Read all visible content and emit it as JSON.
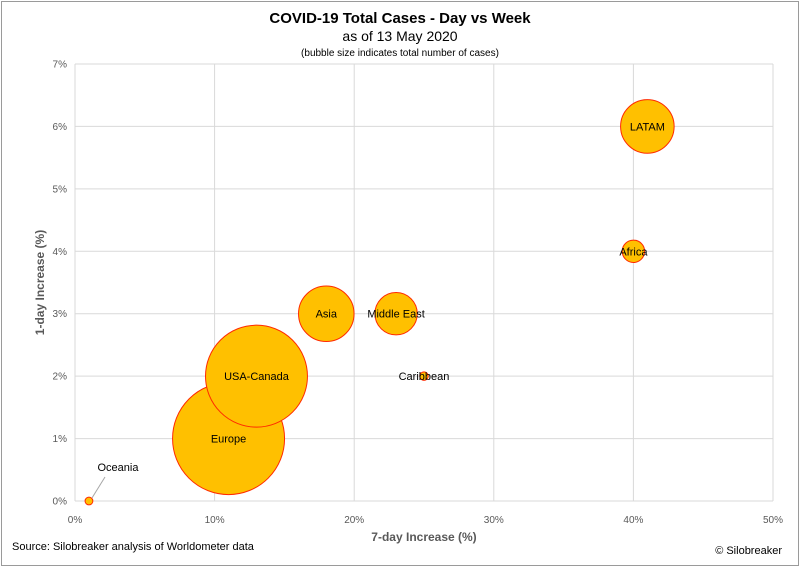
{
  "chart_data": {
    "type": "scatter",
    "title": "COVID-19 Total Cases - Day vs Week",
    "subtitle": "as of 13 May 2020",
    "note": "(bubble size indicates total number of cases)",
    "xlabel": "7-day Increase (%)",
    "ylabel": "1-day Increase (%)",
    "xlim": [
      0,
      50
    ],
    "ylim": [
      0,
      7
    ],
    "xticks": [
      0,
      10,
      20,
      30,
      40,
      50
    ],
    "xtick_labels": [
      "0%",
      "10%",
      "20%",
      "30%",
      "40%",
      "50%"
    ],
    "yticks": [
      0,
      1,
      2,
      3,
      4,
      5,
      6,
      7
    ],
    "ytick_labels": [
      "0%",
      "1%",
      "2%",
      "3%",
      "4%",
      "5%",
      "6%",
      "7%"
    ],
    "grid": true,
    "bubble_fill": "#FFC000",
    "bubble_stroke": "#FF2A00",
    "points": [
      {
        "label": "Europe",
        "x": 11,
        "y": 1,
        "size": 1750000
      },
      {
        "label": "USA-Canada",
        "x": 13,
        "y": 2,
        "size": 1450000
      },
      {
        "label": "Asia",
        "x": 18,
        "y": 3,
        "size": 430000
      },
      {
        "label": "Middle East",
        "x": 23,
        "y": 3,
        "size": 250000
      },
      {
        "label": "LATAM",
        "x": 41,
        "y": 6,
        "size": 400000
      },
      {
        "label": "Africa",
        "x": 40,
        "y": 4,
        "size": 70000
      },
      {
        "label": "Caribbean",
        "x": 25,
        "y": 2,
        "size": 10000
      },
      {
        "label": "Oceania",
        "x": 1,
        "y": 0,
        "size": 8500
      }
    ]
  },
  "footer": {
    "source": "Source: Silobreaker analysis of Worldometer data",
    "copyright": "© Silobreaker"
  }
}
